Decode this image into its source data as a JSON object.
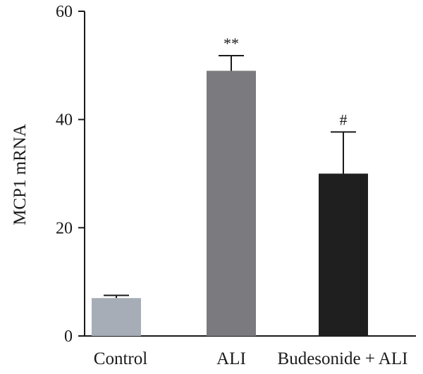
{
  "chart_data": {
    "type": "bar",
    "categories": [
      "Control",
      "ALI",
      "Budesonide + ALI"
    ],
    "values": [
      7,
      49,
      30
    ],
    "errors": [
      0.5,
      2.8,
      7.7
    ],
    "significance": [
      "",
      "**",
      "#"
    ],
    "colors": [
      "#a7adb7",
      "#7b7b7f",
      "#1f1f1f"
    ],
    "xlabel": "",
    "ylabel": "MCP1 mRNA",
    "ylim": [
      0,
      60
    ],
    "yticks": [
      "0",
      "20",
      "40",
      "60"
    ],
    "grid": false,
    "legend": "none"
  }
}
